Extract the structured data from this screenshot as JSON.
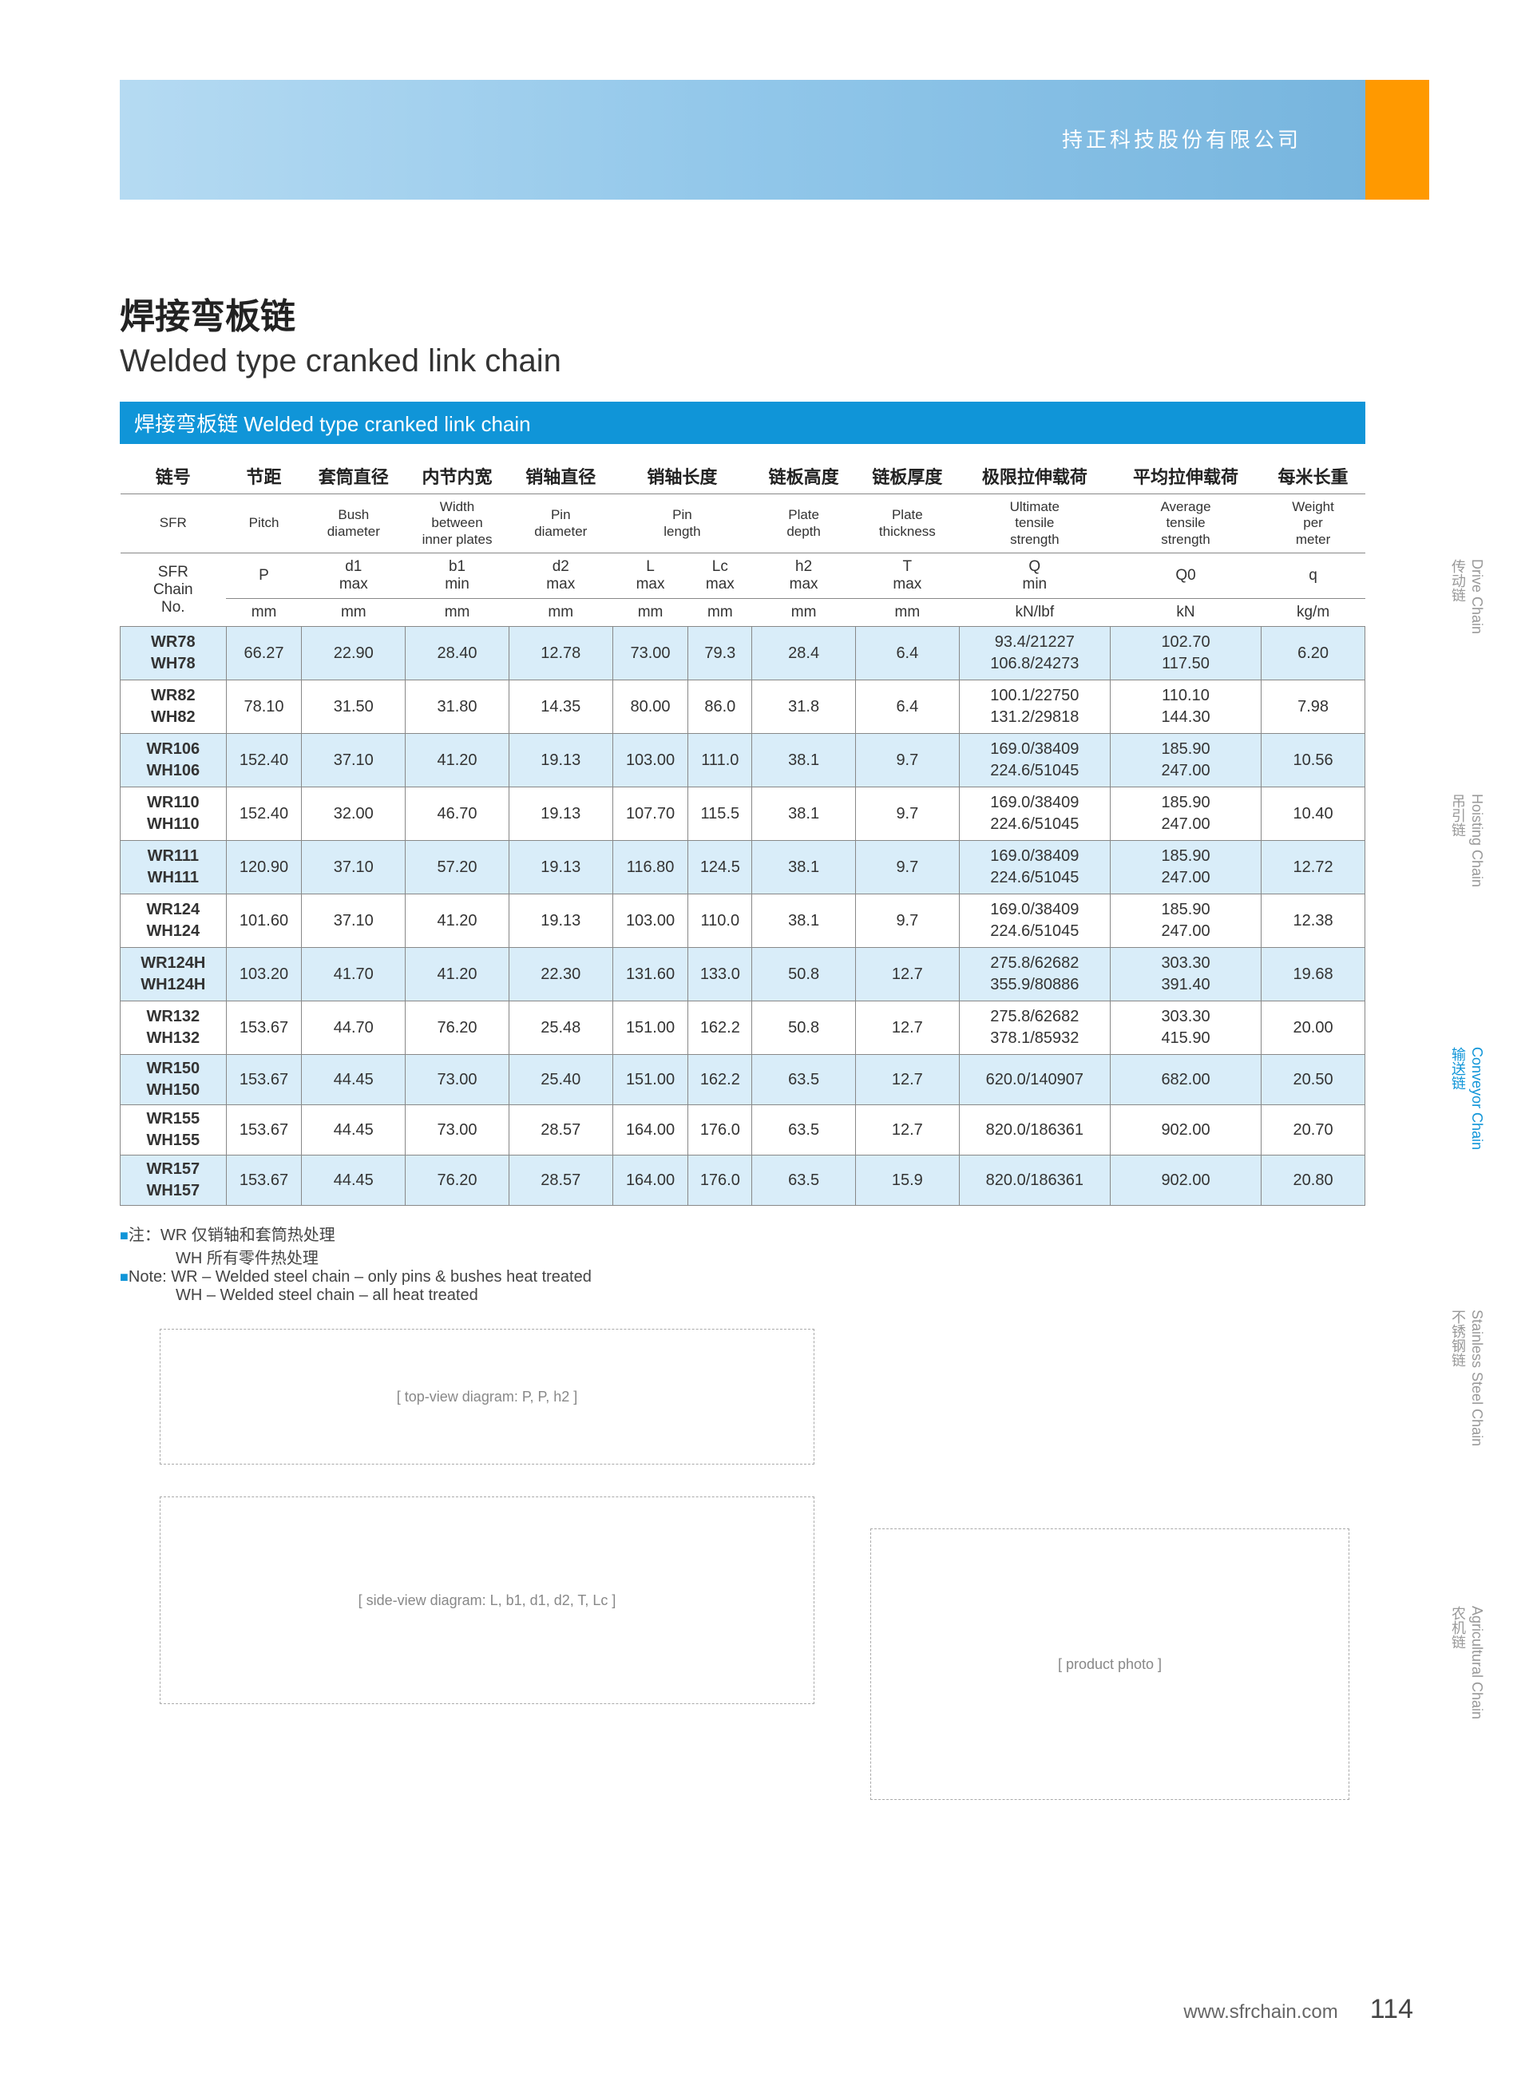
{
  "banner": {
    "company": "持正科技股份有限公司"
  },
  "title": {
    "zh": "焊接弯板链",
    "en": "Welded type cranked link chain"
  },
  "section_bar": "焊接弯板链  Welded type cranked link chain",
  "headers": [
    {
      "zh": "链号",
      "en": "SFR"
    },
    {
      "zh": "节距",
      "en": "Pitch"
    },
    {
      "zh": "套筒直径",
      "en": "Bush\ndiameter"
    },
    {
      "zh": "内节内宽",
      "en": "Width\nbetween\ninner plates"
    },
    {
      "zh": "销轴直径",
      "en": "Pin\ndiameter"
    },
    {
      "zh": "销轴长度",
      "en": "Pin\nlength"
    },
    {
      "zh": "链板高度",
      "en": "Plate\ndepth"
    },
    {
      "zh": "链板厚度",
      "en": "Plate\nthickness"
    },
    {
      "zh": "极限拉伸载荷",
      "en": "Ultimate\ntensile\nstrength"
    },
    {
      "zh": "平均拉伸载荷",
      "en": "Average\ntensile\nstrength"
    },
    {
      "zh": "每米长重",
      "en": "Weight\nper\nmeter"
    }
  ],
  "symbols": {
    "sfr": "SFR\nChain\nNo.",
    "p": "P",
    "d1": "d1\nmax",
    "b1": "b1\nmin",
    "d2": "d2\nmax",
    "L": "L\nmax",
    "Lc": "Lc\nmax",
    "h2": "h2\nmax",
    "T": "T\nmax",
    "Q": "Q\nmin",
    "Q0": "Q0",
    "q": "q"
  },
  "units": [
    "mm",
    "mm",
    "mm",
    "mm",
    "mm",
    "mm",
    "mm",
    "mm",
    "kN/lbf",
    "kN",
    "kg/m"
  ],
  "rows": [
    {
      "models": [
        "WR78",
        "WH78"
      ],
      "vals": [
        "66.27",
        "22.90",
        "28.40",
        "12.78",
        "73.00",
        "79.3",
        "28.4",
        "6.4"
      ],
      "q": [
        "93.4/21227",
        "106.8/24273"
      ],
      "q0": [
        "102.70",
        "117.50"
      ],
      "wt": "6.20",
      "alt": true
    },
    {
      "models": [
        "WR82",
        "WH82"
      ],
      "vals": [
        "78.10",
        "31.50",
        "31.80",
        "14.35",
        "80.00",
        "86.0",
        "31.8",
        "6.4"
      ],
      "q": [
        "100.1/22750",
        "131.2/29818"
      ],
      "q0": [
        "110.10",
        "144.30"
      ],
      "wt": "7.98",
      "alt": false
    },
    {
      "models": [
        "WR106",
        "WH106"
      ],
      "vals": [
        "152.40",
        "37.10",
        "41.20",
        "19.13",
        "103.00",
        "111.0",
        "38.1",
        "9.7"
      ],
      "q": [
        "169.0/38409",
        "224.6/51045"
      ],
      "q0": [
        "185.90",
        "247.00"
      ],
      "wt": "10.56",
      "alt": true
    },
    {
      "models": [
        "WR110",
        "WH110"
      ],
      "vals": [
        "152.40",
        "32.00",
        "46.70",
        "19.13",
        "107.70",
        "115.5",
        "38.1",
        "9.7"
      ],
      "q": [
        "169.0/38409",
        "224.6/51045"
      ],
      "q0": [
        "185.90",
        "247.00"
      ],
      "wt": "10.40",
      "alt": false
    },
    {
      "models": [
        "WR111",
        "WH111"
      ],
      "vals": [
        "120.90",
        "37.10",
        "57.20",
        "19.13",
        "116.80",
        "124.5",
        "38.1",
        "9.7"
      ],
      "q": [
        "169.0/38409",
        "224.6/51045"
      ],
      "q0": [
        "185.90",
        "247.00"
      ],
      "wt": "12.72",
      "alt": true
    },
    {
      "models": [
        "WR124",
        "WH124"
      ],
      "vals": [
        "101.60",
        "37.10",
        "41.20",
        "19.13",
        "103.00",
        "110.0",
        "38.1",
        "9.7"
      ],
      "q": [
        "169.0/38409",
        "224.6/51045"
      ],
      "q0": [
        "185.90",
        "247.00"
      ],
      "wt": "12.38",
      "alt": false
    },
    {
      "models": [
        "WR124H",
        "WH124H"
      ],
      "vals": [
        "103.20",
        "41.70",
        "41.20",
        "22.30",
        "131.60",
        "133.0",
        "50.8",
        "12.7"
      ],
      "q": [
        "275.8/62682",
        "355.9/80886"
      ],
      "q0": [
        "303.30",
        "391.40"
      ],
      "wt": "19.68",
      "alt": true
    },
    {
      "models": [
        "WR132",
        "WH132"
      ],
      "vals": [
        "153.67",
        "44.70",
        "76.20",
        "25.48",
        "151.00",
        "162.2",
        "50.8",
        "12.7"
      ],
      "q": [
        "275.8/62682",
        "378.1/85932"
      ],
      "q0": [
        "303.30",
        "415.90"
      ],
      "wt": "20.00",
      "alt": false
    },
    {
      "models": [
        "WR150",
        "WH150"
      ],
      "vals": [
        "153.67",
        "44.45",
        "73.00",
        "25.40",
        "151.00",
        "162.2",
        "63.5",
        "12.7"
      ],
      "q": [
        "620.0/140907"
      ],
      "q0": [
        "682.00"
      ],
      "wt": "20.50",
      "alt": true
    },
    {
      "models": [
        "WR155",
        "WH155"
      ],
      "vals": [
        "153.67",
        "44.45",
        "73.00",
        "28.57",
        "164.00",
        "176.0",
        "63.5",
        "12.7"
      ],
      "q": [
        "820.0/186361"
      ],
      "q0": [
        "902.00"
      ],
      "wt": "20.70",
      "alt": false
    },
    {
      "models": [
        "WR157",
        "WH157"
      ],
      "vals": [
        "153.67",
        "44.45",
        "76.20",
        "28.57",
        "164.00",
        "176.0",
        "63.5",
        "15.9"
      ],
      "q": [
        "820.0/186361"
      ],
      "q0": [
        "902.00"
      ],
      "wt": "20.80",
      "alt": true
    }
  ],
  "notes": {
    "zh1": "注：WR 仅销轴和套筒热处理",
    "zh2": "WH 所有零件热处理",
    "en1": "Note: WR – Welded steel chain – only pins & bushes heat treated",
    "en2": "WH – Welded steel chain – all heat treated"
  },
  "side_tabs": [
    {
      "zh": "传动链",
      "en": "Drive Chain",
      "active": false
    },
    {
      "zh": "吊引链",
      "en": "Hoisting Chain",
      "active": false
    },
    {
      "zh": "输送链",
      "en": "Conveyor Chain",
      "active": true
    },
    {
      "zh": "不锈钢链",
      "en": "Stainless Steel Chain",
      "active": false
    },
    {
      "zh": "农机链",
      "en": "Agricultural Chain",
      "active": false
    }
  ],
  "footer": {
    "url": "www.sfrchain.com",
    "page": "114"
  },
  "colors": {
    "primary": "#1095d8",
    "accent": "#ff9900",
    "row_alt": "#d9edf9"
  }
}
